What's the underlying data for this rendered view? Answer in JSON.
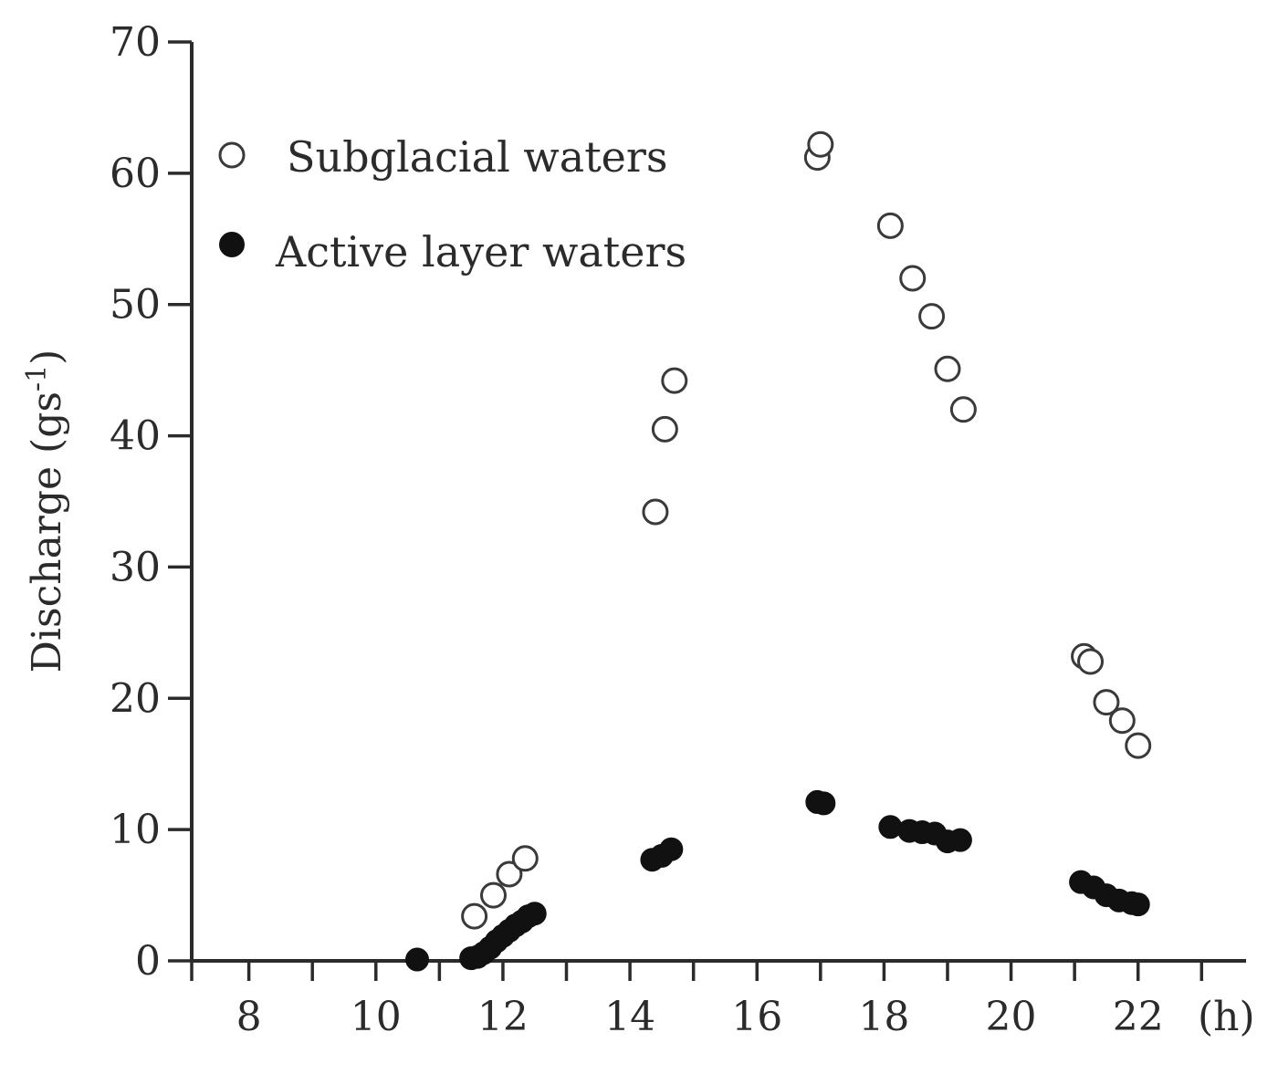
{
  "chart_data": {
    "type": "scatter",
    "title": "",
    "xlabel": "(h)",
    "ylabel": "Discharge (gs",
    "ylabel_sup": "-1",
    "ylabel_close": ")",
    "xlim": [
      7.1,
      23.7
    ],
    "ylim": [
      0,
      70
    ],
    "x_ticks": [
      8,
      10,
      12,
      14,
      16,
      18,
      20,
      22
    ],
    "x_minor_ticks": [
      9,
      11,
      13,
      15,
      17,
      19,
      21,
      23
    ],
    "y_ticks": [
      0,
      10,
      20,
      30,
      40,
      50,
      60,
      70
    ],
    "grid": false,
    "legend_position": "top-left",
    "series": [
      {
        "name": "Subglacial waters",
        "marker": "open-circle",
        "color": "#3a3a3a",
        "points": [
          [
            11.55,
            3.4
          ],
          [
            11.85,
            5.0
          ],
          [
            12.1,
            6.6
          ],
          [
            12.35,
            7.8
          ],
          [
            14.4,
            34.2
          ],
          [
            14.55,
            40.5
          ],
          [
            14.7,
            44.2
          ],
          [
            16.95,
            61.2
          ],
          [
            17.0,
            62.2
          ],
          [
            18.1,
            56.0
          ],
          [
            18.45,
            52.0
          ],
          [
            18.75,
            49.1
          ],
          [
            19.0,
            45.1
          ],
          [
            19.25,
            42.0
          ],
          [
            21.15,
            23.2
          ],
          [
            21.25,
            22.8
          ],
          [
            21.5,
            19.7
          ],
          [
            21.75,
            18.3
          ],
          [
            22.0,
            16.4
          ]
        ]
      },
      {
        "name": "Active layer waters",
        "marker": "filled-circle",
        "color": "#111111",
        "points": [
          [
            10.65,
            0.1
          ],
          [
            11.5,
            0.2
          ],
          [
            11.6,
            0.3
          ],
          [
            11.7,
            0.6
          ],
          [
            11.8,
            1.0
          ],
          [
            11.9,
            1.5
          ],
          [
            12.0,
            1.9
          ],
          [
            12.1,
            2.3
          ],
          [
            12.2,
            2.7
          ],
          [
            12.3,
            3.0
          ],
          [
            12.4,
            3.4
          ],
          [
            12.5,
            3.6
          ],
          [
            14.35,
            7.7
          ],
          [
            14.5,
            8.0
          ],
          [
            14.65,
            8.5
          ],
          [
            16.95,
            12.1
          ],
          [
            17.05,
            12.0
          ],
          [
            18.1,
            10.2
          ],
          [
            18.4,
            9.9
          ],
          [
            18.6,
            9.8
          ],
          [
            18.8,
            9.7
          ],
          [
            19.0,
            9.1
          ],
          [
            19.2,
            9.2
          ],
          [
            21.1,
            6.0
          ],
          [
            21.3,
            5.6
          ],
          [
            21.5,
            5.0
          ],
          [
            21.7,
            4.6
          ],
          [
            21.9,
            4.4
          ],
          [
            22.0,
            4.3
          ]
        ]
      }
    ]
  }
}
